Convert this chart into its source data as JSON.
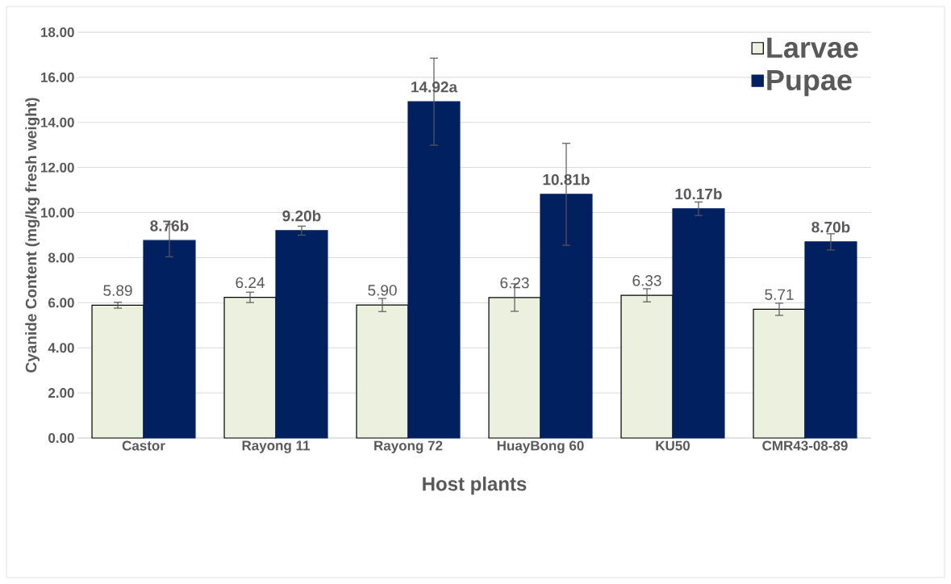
{
  "chart_data": {
    "type": "bar",
    "xlabel": "Host plants",
    "ylabel": "Cyanide Content (mg/kg fresh weight)",
    "categories": [
      "Castor",
      "Rayong 11",
      "Rayong 72",
      "HuayBong 60",
      "KU50",
      "CMR43-08-89"
    ],
    "series": [
      {
        "name": "Larvae",
        "color": "#ebf0df",
        "values": [
          5.89,
          6.24,
          5.9,
          6.23,
          6.33,
          5.71
        ],
        "errors": [
          0.13,
          0.23,
          0.29,
          0.61,
          0.29,
          0.27
        ],
        "value_labels": [
          "5.89",
          "6.24",
          "5.90",
          "6.23",
          "6.33",
          "5.71"
        ]
      },
      {
        "name": "Pupae",
        "color": "#002060",
        "values": [
          8.76,
          9.2,
          14.92,
          10.81,
          10.17,
          8.7
        ],
        "errors": [
          0.72,
          0.2,
          1.93,
          2.26,
          0.3,
          0.36
        ],
        "value_labels": [
          "8.76b",
          "9.20b",
          "14.92a",
          "10.81b",
          "10.17b",
          "8.70b"
        ]
      }
    ],
    "ylim": [
      0,
      18
    ],
    "yticks": [
      {
        "value": 0,
        "label": "0.00"
      },
      {
        "value": 2,
        "label": "2.00"
      },
      {
        "value": 4,
        "label": "4.00"
      },
      {
        "value": 6,
        "label": "6.00"
      },
      {
        "value": 8,
        "label": "8.00"
      },
      {
        "value": 10,
        "label": "10.00"
      },
      {
        "value": 12,
        "label": "12.00"
      },
      {
        "value": 14,
        "label": "14.00"
      },
      {
        "value": 16,
        "label": "16.00"
      },
      {
        "value": 18,
        "label": "18.00"
      }
    ],
    "grid": "y",
    "legend": "top right"
  }
}
